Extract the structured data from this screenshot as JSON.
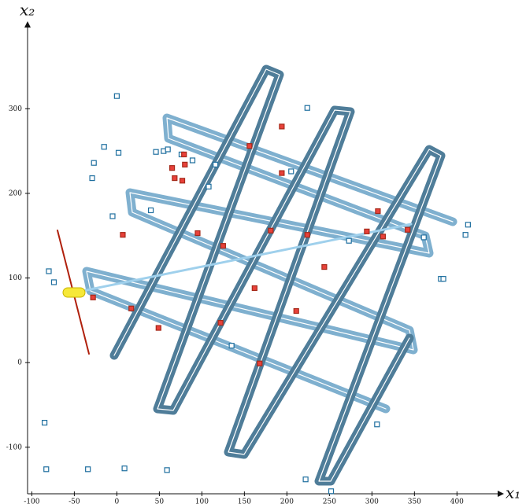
{
  "chart_data": {
    "type": "scatter",
    "xlabel": "x₁",
    "ylabel": "x₂",
    "xlim": [
      -105,
      446
    ],
    "ylim": [
      -155,
      396
    ],
    "xticks": [
      -100,
      -50,
      0,
      50,
      100,
      150,
      200,
      250,
      300,
      350,
      400
    ],
    "yticks": [
      -100,
      0,
      100,
      200,
      300
    ],
    "series": [
      {
        "color": "#1f6f9f",
        "x": [
          0,
          -15,
          2,
          -27,
          -29,
          46,
          55,
          60,
          76,
          89,
          116,
          108,
          -5,
          40,
          -80,
          -74,
          224,
          205,
          273,
          361,
          413,
          410,
          381,
          384,
          135,
          306,
          -85,
          -83,
          -34,
          9,
          59,
          222,
          252
        ],
        "values": [
          315,
          255,
          248,
          236,
          218,
          249,
          250,
          252,
          246,
          239,
          234,
          208,
          173,
          180,
          108,
          95,
          301,
          226,
          144,
          148,
          163,
          151,
          99,
          99,
          20,
          -73,
          -71,
          -126,
          -126,
          -125,
          -127,
          -138,
          -152
        ]
      },
      {
        "color": "#e8413a",
        "x": [
          7,
          95,
          125,
          65,
          68,
          77,
          80,
          79,
          156,
          194,
          194,
          181,
          224,
          244,
          307,
          294,
          313,
          342,
          162,
          211,
          168,
          122,
          49,
          17,
          -28
        ],
        "values": [
          151,
          153,
          138,
          230,
          218,
          215,
          234,
          246,
          256,
          279,
          224,
          156,
          151,
          113,
          179,
          155,
          149,
          157,
          88,
          61,
          -1,
          47,
          41,
          64,
          77
        ]
      }
    ]
  }
}
